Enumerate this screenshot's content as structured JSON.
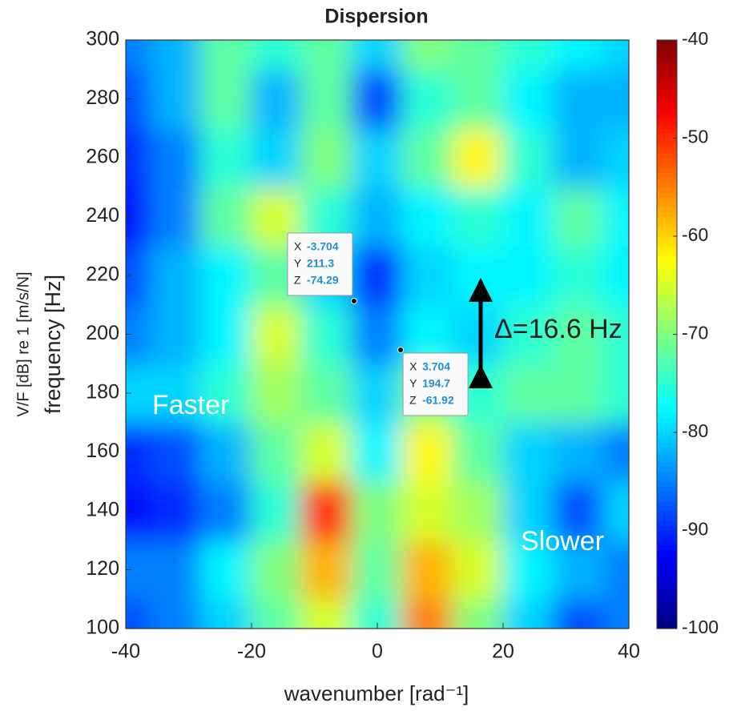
{
  "chart_data": {
    "type": "heatmap",
    "title": "Dispersion",
    "xlabel": "wavenumber [rad⁻¹]",
    "ylabel": [
      "V/F [dB] re 1 [m/s/N]",
      "frequency [Hz]"
    ],
    "colormap": "jet",
    "x": [
      -40,
      -32,
      -24,
      -16,
      -8,
      0,
      8,
      16,
      24,
      32,
      40
    ],
    "y": [
      100,
      120,
      140,
      160,
      180,
      200,
      220,
      240,
      260,
      280,
      300
    ],
    "z": [
      [
        -88,
        -85,
        -80,
        -72,
        -65,
        -75,
        -55,
        -70,
        -80,
        -88,
        -85
      ],
      [
        -85,
        -85,
        -78,
        -70,
        -58,
        -72,
        -58,
        -65,
        -78,
        -82,
        -85
      ],
      [
        -92,
        -90,
        -85,
        -75,
        -50,
        -70,
        -65,
        -68,
        -80,
        -88,
        -80
      ],
      [
        -90,
        -88,
        -82,
        -72,
        -65,
        -78,
        -62,
        -72,
        -80,
        -82,
        -85
      ],
      [
        -80,
        -80,
        -75,
        -68,
        -72,
        -80,
        -70,
        -75,
        -72,
        -72,
        -75
      ],
      [
        -85,
        -82,
        -78,
        -65,
        -75,
        -85,
        -78,
        -80,
        -75,
        -72,
        -75
      ],
      [
        -88,
        -82,
        -78,
        -72,
        -80,
        -90,
        -80,
        -78,
        -78,
        -75,
        -78
      ],
      [
        -92,
        -85,
        -72,
        -65,
        -75,
        -82,
        -78,
        -75,
        -78,
        -72,
        -78
      ],
      [
        -90,
        -85,
        -75,
        -80,
        -70,
        -80,
        -72,
        -62,
        -75,
        -82,
        -80
      ],
      [
        -88,
        -82,
        -72,
        -82,
        -72,
        -88,
        -75,
        -72,
        -78,
        -82,
        -82
      ],
      [
        -85,
        -82,
        -72,
        -75,
        -72,
        -80,
        -70,
        -72,
        -75,
        -78,
        -80
      ]
    ],
    "xlim": [
      -40,
      40
    ],
    "ylim": [
      100,
      300
    ],
    "xticks": [
      -40,
      -20,
      0,
      20,
      40
    ],
    "yticks": [
      100,
      120,
      140,
      160,
      180,
      200,
      220,
      240,
      260,
      280,
      300
    ],
    "clim": [
      -100,
      -40
    ],
    "cticks": [
      -100,
      -90,
      -80,
      -70,
      -60,
      -50,
      -40
    ],
    "datatip_labels": [
      "X",
      "Y",
      "Z"
    ],
    "datatips": [
      {
        "x": -3.704,
        "y": 211.3,
        "z": -74.29
      },
      {
        "x": 3.704,
        "y": 194.7,
        "z": -61.92
      }
    ],
    "annotations": [
      "Δ=16.6 Hz",
      "Faster",
      "Slower"
    ]
  }
}
